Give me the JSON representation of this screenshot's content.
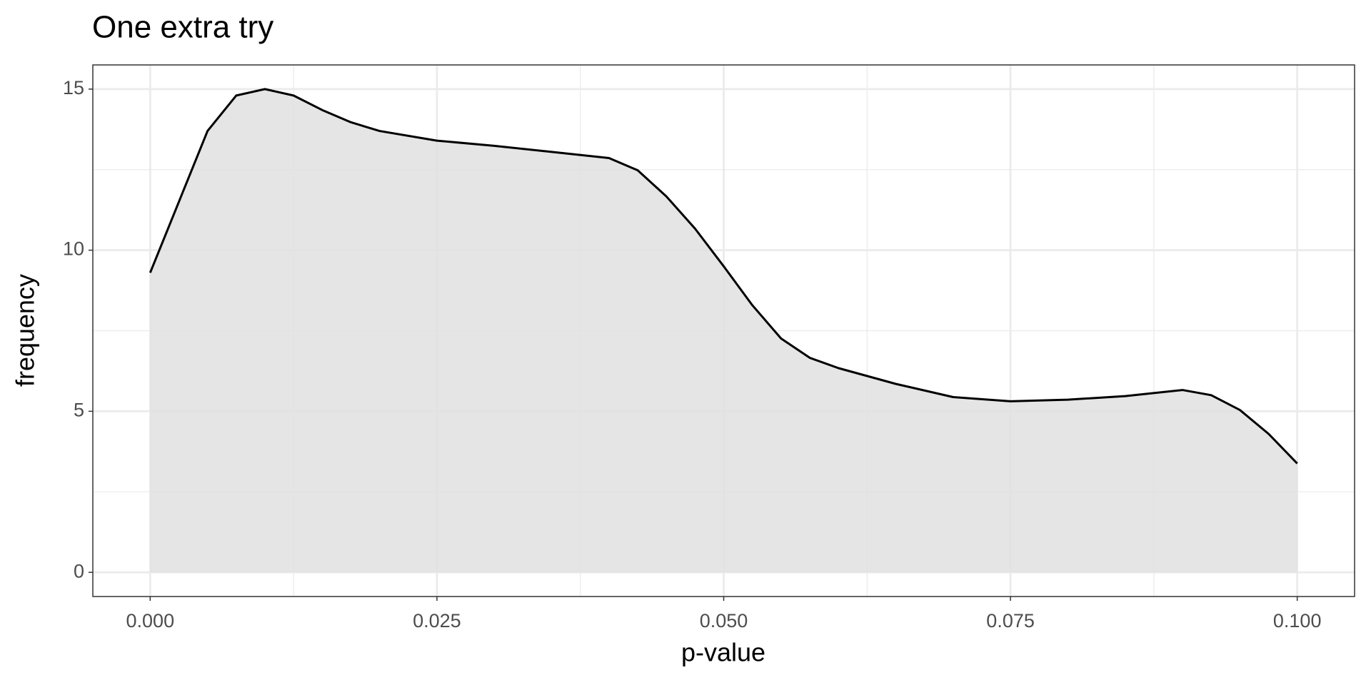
{
  "chart_data": {
    "type": "area",
    "title": "One extra try",
    "x_label": "p-value",
    "y_label": "frequency",
    "x": [
      0,
      0.0025,
      0.005,
      0.0075,
      0.01,
      0.0125,
      0.015,
      0.0175,
      0.02,
      0.025,
      0.03,
      0.035,
      0.04,
      0.0425,
      0.045,
      0.0475,
      0.05,
      0.0525,
      0.055,
      0.0575,
      0.06,
      0.065,
      0.07,
      0.075,
      0.08,
      0.085,
      0.09,
      0.0925,
      0.095,
      0.0975,
      0.1
    ],
    "values": [
      9.3,
      11.5,
      13.7,
      14.8,
      15.0,
      14.8,
      14.35,
      13.97,
      13.7,
      13.4,
      13.24,
      13.05,
      12.86,
      12.48,
      11.67,
      10.67,
      9.5,
      8.29,
      7.26,
      6.66,
      6.34,
      5.85,
      5.44,
      5.31,
      5.36,
      5.47,
      5.66,
      5.5,
      5.04,
      4.3,
      3.38
    ],
    "color": "#000000",
    "fill": "#e0e0e0",
    "xlim": [
      -0.005,
      0.105
    ],
    "xticks": [
      {
        "value": 0,
        "label": "0.000"
      },
      {
        "value": 0.025,
        "label": "0.025"
      },
      {
        "value": 0.05,
        "label": "0.050"
      },
      {
        "value": 0.075,
        "label": "0.075"
      },
      {
        "value": 0.1,
        "label": "0.100"
      }
    ],
    "ylim": [
      -0.75,
      15.75
    ],
    "yticks": [
      0,
      5,
      10,
      15
    ],
    "grid": true
  }
}
